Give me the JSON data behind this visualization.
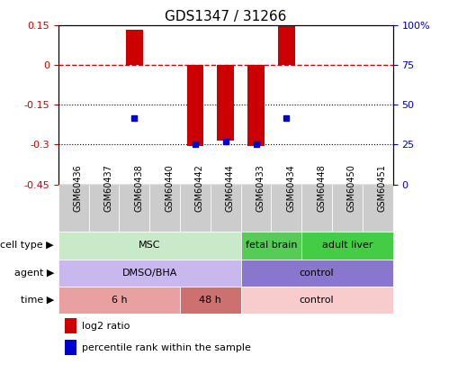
{
  "title": "GDS1347 / 31266",
  "samples": [
    "GSM60436",
    "GSM60437",
    "GSM60438",
    "GSM60440",
    "GSM60442",
    "GSM60444",
    "GSM60433",
    "GSM60434",
    "GSM60448",
    "GSM60450",
    "GSM60451"
  ],
  "log2_ratio": [
    0,
    0,
    0.135,
    0,
    -0.305,
    -0.285,
    -0.305,
    0.148,
    0,
    0,
    0
  ],
  "percentile_rank": [
    null,
    null,
    42,
    null,
    25,
    27,
    25,
    42,
    null,
    null,
    null
  ],
  "ylim_left": [
    -0.45,
    0.15
  ],
  "ylim_right": [
    0,
    100
  ],
  "yticks_left": [
    0.15,
    0,
    -0.15,
    -0.3,
    -0.45
  ],
  "yticks_right": [
    100,
    75,
    50,
    25,
    0
  ],
  "cell_type_groups": [
    {
      "label": "MSC",
      "start": 0,
      "end": 6,
      "color": "#c8eac8"
    },
    {
      "label": "fetal brain",
      "start": 6,
      "end": 8,
      "color": "#55cc55"
    },
    {
      "label": "adult liver",
      "start": 8,
      "end": 11,
      "color": "#44cc44"
    }
  ],
  "agent_groups": [
    {
      "label": "DMSO/BHA",
      "start": 0,
      "end": 6,
      "color": "#c8b8ee"
    },
    {
      "label": "control",
      "start": 6,
      "end": 11,
      "color": "#8877cc"
    }
  ],
  "time_groups": [
    {
      "label": "6 h",
      "start": 0,
      "end": 4,
      "color": "#e8a0a0"
    },
    {
      "label": "48 h",
      "start": 4,
      "end": 6,
      "color": "#cc7070"
    },
    {
      "label": "control",
      "start": 6,
      "end": 11,
      "color": "#f8cccc"
    }
  ],
  "bar_color": "#cc0000",
  "dot_color": "#0000cc",
  "ref_line_color": "#cc0000",
  "grid_color": "#000000",
  "label_cell_type": "cell type",
  "label_agent": "agent",
  "label_time": "time",
  "legend_log2": "log2 ratio",
  "legend_pct": "percentile rank within the sample",
  "sample_bg_color": "#cccccc",
  "chart_bg_color": "#ffffff",
  "border_color": "#000000"
}
